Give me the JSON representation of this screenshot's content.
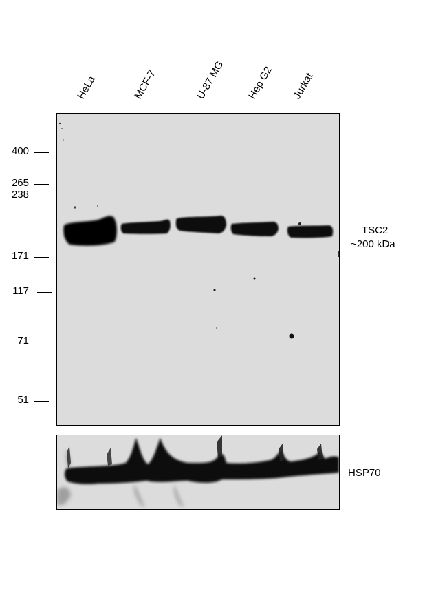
{
  "lanes": [
    "HeLa",
    "MCF-7",
    "U-87 MG",
    "Hep G2",
    "Jurkat"
  ],
  "mw_markers": [
    "400",
    "265",
    "238",
    "171",
    "117",
    "71",
    "51"
  ],
  "target": {
    "name": "TSC2",
    "size": "~200 kDa"
  },
  "loading_control": "HSP70",
  "colors": {
    "membrane": "#dcdcdc",
    "band": "#0a0a0a"
  }
}
